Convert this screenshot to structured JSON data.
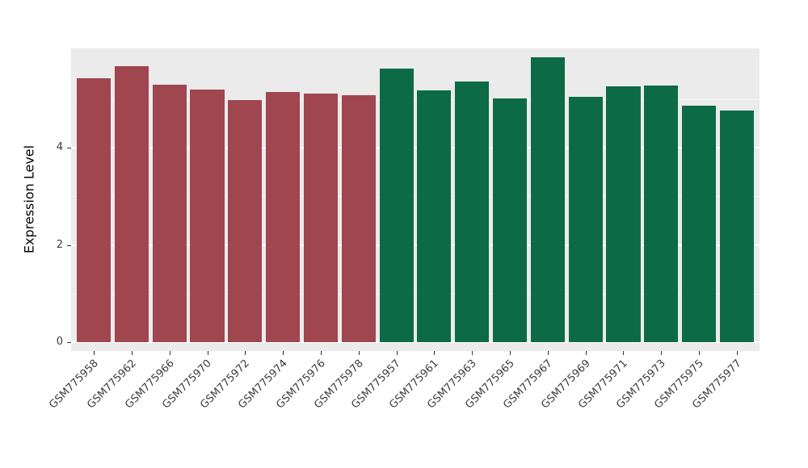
{
  "chart_data": {
    "type": "bar",
    "title": "",
    "xlabel": "",
    "ylabel": "Expression Level",
    "ylim": [
      0,
      6.05
    ],
    "y_ticks": [
      0,
      2,
      4
    ],
    "y_minor_ticks": [
      1,
      3,
      5
    ],
    "grid": true,
    "legend": "none",
    "categories": [
      "GSM775958",
      "GSM775962",
      "GSM775966",
      "GSM775970",
      "GSM775972",
      "GSM775974",
      "GSM775976",
      "GSM775978",
      "GSM775957",
      "GSM775961",
      "GSM775963",
      "GSM775965",
      "GSM775967",
      "GSM775969",
      "GSM775971",
      "GSM775973",
      "GSM775975",
      "GSM775977"
    ],
    "values": [
      5.43,
      5.68,
      5.29,
      5.19,
      4.98,
      5.14,
      5.11,
      5.08,
      5.63,
      5.18,
      5.36,
      5.01,
      5.86,
      5.05,
      5.26,
      5.28,
      4.86,
      4.76
    ],
    "bar_groups": [
      "group1",
      "group1",
      "group1",
      "group1",
      "group1",
      "group1",
      "group1",
      "group1",
      "group2",
      "group2",
      "group2",
      "group2",
      "group2",
      "group2",
      "group2",
      "group2",
      "group2",
      "group2"
    ],
    "group_colors": {
      "group1": "#A0464F",
      "group2": "#0C6B46"
    }
  },
  "styles": {
    "panel_bg": "#EBEBEB",
    "grid_major_color": "#FFFFFF",
    "grid_minor_color": "#F5F5F5",
    "axis_text_color": "#3C3C3C",
    "tick_mark_color": "#333333",
    "background": "#FFFFFF"
  }
}
